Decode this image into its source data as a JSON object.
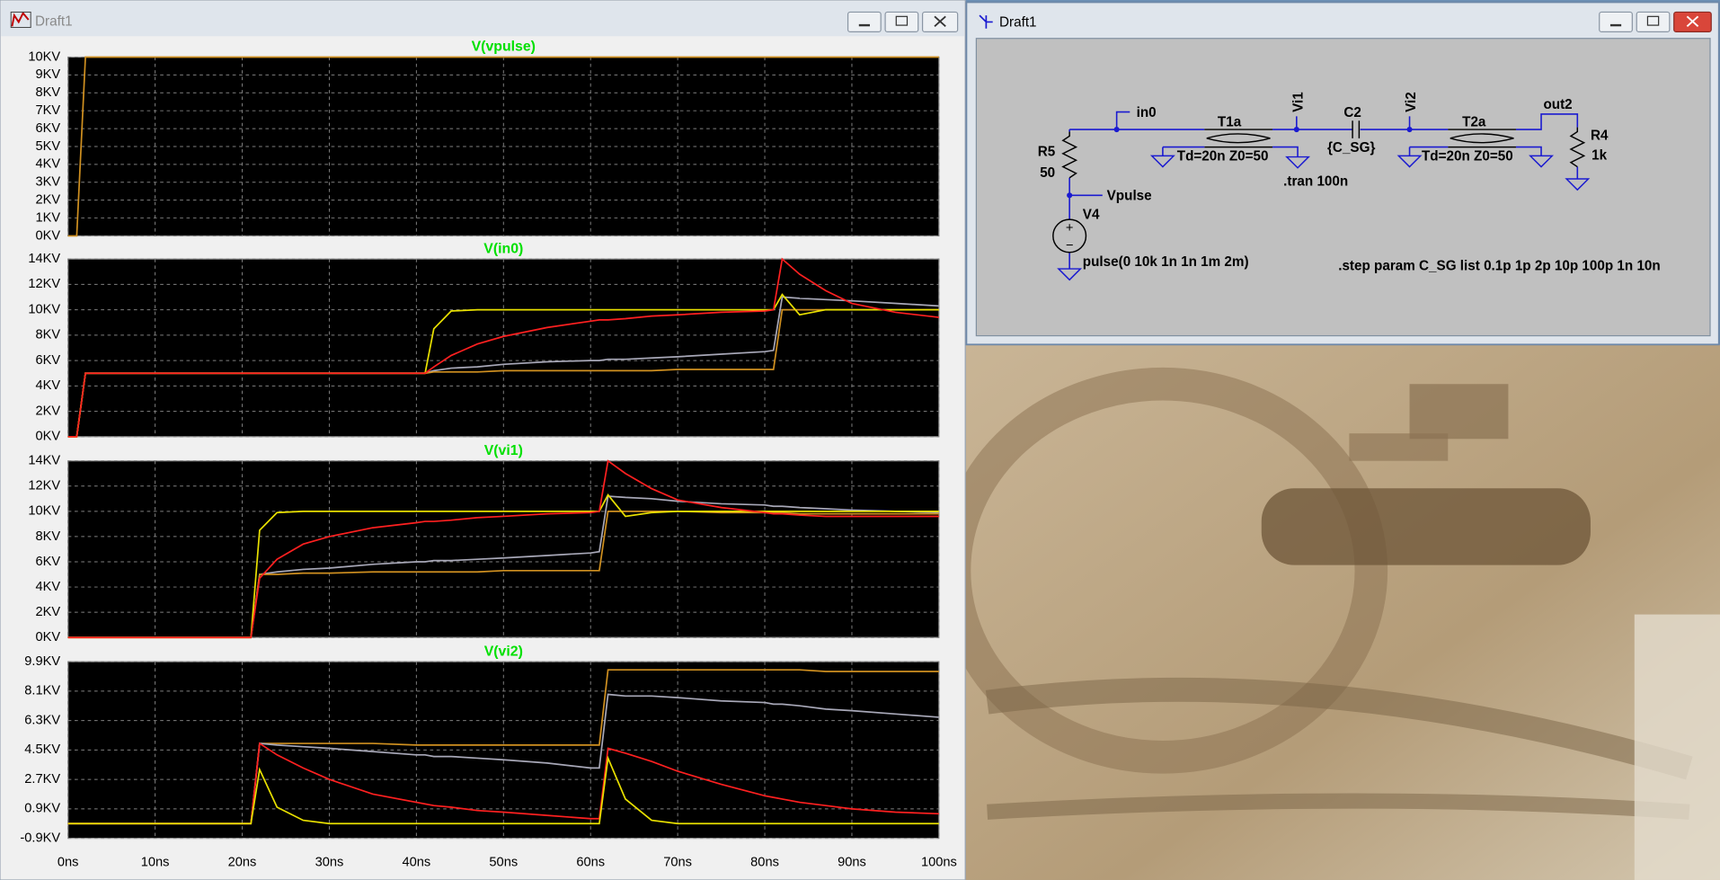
{
  "waveform_window": {
    "title": "Draft1"
  },
  "chart_data": [
    {
      "type": "line",
      "title": "V(vpulse)",
      "x": [
        0,
        1,
        2,
        100
      ],
      "xlim": [
        0,
        100
      ],
      "ylim": [
        0,
        10
      ],
      "grid": true,
      "yticks": [
        {
          "value": 0,
          "label": "0KV"
        },
        {
          "value": 1,
          "label": "1KV"
        },
        {
          "value": 2,
          "label": "2KV"
        },
        {
          "value": 3,
          "label": "3KV"
        },
        {
          "value": 4,
          "label": "4KV"
        },
        {
          "value": 5,
          "label": "5KV"
        },
        {
          "value": 6,
          "label": "6KV"
        },
        {
          "value": 7,
          "label": "7KV"
        },
        {
          "value": 8,
          "label": "8KV"
        },
        {
          "value": 9,
          "label": "9KV"
        },
        {
          "value": 10,
          "label": "10KV"
        }
      ],
      "series": [
        {
          "color": "#d09020",
          "values": [
            0,
            0,
            10,
            10
          ]
        }
      ]
    },
    {
      "type": "line",
      "title": "V(in0)",
      "x": [
        0,
        1,
        2,
        21,
        22,
        24,
        27,
        30,
        35,
        40,
        41,
        42,
        44,
        47,
        50,
        55,
        60,
        61,
        62,
        64,
        67,
        70,
        75,
        80,
        81,
        82,
        84,
        87,
        90,
        95,
        100
      ],
      "xlim": [
        0,
        100
      ],
      "ylim": [
        0,
        14
      ],
      "grid": true,
      "yticks": [
        {
          "value": 0,
          "label": "0KV"
        },
        {
          "value": 2,
          "label": "2KV"
        },
        {
          "value": 4,
          "label": "4KV"
        },
        {
          "value": 6,
          "label": "6KV"
        },
        {
          "value": 8,
          "label": "8KV"
        },
        {
          "value": 10,
          "label": "10KV"
        },
        {
          "value": 12,
          "label": "12KV"
        },
        {
          "value": 14,
          "label": "14KV"
        }
      ],
      "series": [
        {
          "color": "#a8a8b8",
          "values": [
            0,
            0,
            5,
            5,
            5,
            5,
            5,
            5,
            5,
            5,
            5,
            5.2,
            5.4,
            5.5,
            5.7,
            5.9,
            6.0,
            6.0,
            6.1,
            6.1,
            6.2,
            6.3,
            6.5,
            6.7,
            6.8,
            11.0,
            10.9,
            10.8,
            10.7,
            10.5,
            10.3
          ]
        },
        {
          "color": "#d09020",
          "values": [
            0,
            0,
            5,
            5,
            5,
            5,
            5,
            5,
            5,
            5,
            5,
            5.1,
            5.1,
            5.1,
            5.2,
            5.2,
            5.2,
            5.2,
            5.2,
            5.2,
            5.2,
            5.3,
            5.3,
            5.3,
            5.3,
            10,
            10,
            10,
            10,
            10,
            10
          ]
        },
        {
          "color": "#e8e000",
          "values": [
            0,
            0,
            5,
            5,
            5,
            5,
            5,
            5,
            5,
            5,
            5,
            8.5,
            9.9,
            10,
            10,
            10,
            10,
            10,
            10,
            10,
            10,
            10,
            10,
            10,
            10,
            11.2,
            9.6,
            10,
            10,
            10,
            10
          ]
        },
        {
          "color": "#ff2020",
          "values": [
            0,
            0,
            5,
            5,
            5,
            5,
            5,
            5,
            5,
            5,
            5,
            5.5,
            6.4,
            7.3,
            7.9,
            8.6,
            9.1,
            9.2,
            9.2,
            9.3,
            9.5,
            9.6,
            9.8,
            9.9,
            10,
            14,
            12.8,
            11.5,
            10.5,
            9.8,
            9.4
          ]
        }
      ]
    },
    {
      "type": "line",
      "title": "V(vi1)",
      "x": [
        0,
        1,
        2,
        21,
        22,
        24,
        27,
        30,
        35,
        40,
        41,
        42,
        44,
        47,
        50,
        55,
        60,
        61,
        62,
        64,
        67,
        70,
        75,
        80,
        81,
        82,
        84,
        87,
        90,
        95,
        100
      ],
      "xlim": [
        0,
        100
      ],
      "ylim": [
        0,
        14
      ],
      "grid": true,
      "yticks": [
        {
          "value": 0,
          "label": "0KV"
        },
        {
          "value": 2,
          "label": "2KV"
        },
        {
          "value": 4,
          "label": "4KV"
        },
        {
          "value": 6,
          "label": "6KV"
        },
        {
          "value": 8,
          "label": "8KV"
        },
        {
          "value": 10,
          "label": "10KV"
        },
        {
          "value": 12,
          "label": "12KV"
        },
        {
          "value": 14,
          "label": "14KV"
        }
      ],
      "series": [
        {
          "color": "#a8a8b8",
          "values": [
            0,
            0,
            0,
            0,
            5,
            5.2,
            5.4,
            5.5,
            5.8,
            6.0,
            6.0,
            6.1,
            6.1,
            6.2,
            6.3,
            6.5,
            6.7,
            6.8,
            11.2,
            11.1,
            11.0,
            10.8,
            10.6,
            10.5,
            10.4,
            10.4,
            10.3,
            10.2,
            10.1,
            10.0,
            9.9
          ]
        },
        {
          "color": "#d09020",
          "values": [
            0,
            0,
            0,
            0,
            5,
            5,
            5.1,
            5.1,
            5.2,
            5.2,
            5.2,
            5.2,
            5.2,
            5.2,
            5.3,
            5.3,
            5.3,
            5.3,
            10,
            10,
            10,
            10,
            9.9,
            9.9,
            9.9,
            9.9,
            9.8,
            9.8,
            9.8,
            9.8,
            9.8
          ]
        },
        {
          "color": "#e8e000",
          "values": [
            0,
            0,
            0,
            0,
            8.5,
            9.9,
            10,
            10,
            10,
            10,
            10,
            10,
            10,
            10,
            10,
            10,
            10,
            10,
            11.3,
            9.6,
            9.9,
            10,
            10,
            10,
            10,
            10,
            10,
            10,
            10,
            10,
            10
          ]
        },
        {
          "color": "#ff2020",
          "values": [
            0,
            0,
            0,
            0,
            4.7,
            6.2,
            7.4,
            8.0,
            8.7,
            9.1,
            9.2,
            9.2,
            9.3,
            9.5,
            9.6,
            9.8,
            9.9,
            10,
            14,
            13,
            11.8,
            10.9,
            10.3,
            9.9,
            9.8,
            9.8,
            9.7,
            9.6,
            9.6,
            9.6,
            9.6
          ]
        }
      ]
    },
    {
      "type": "line",
      "title": "V(vi2)",
      "x": [
        0,
        1,
        2,
        21,
        22,
        24,
        27,
        30,
        35,
        40,
        41,
        42,
        44,
        47,
        50,
        55,
        60,
        61,
        62,
        64,
        67,
        70,
        75,
        80,
        81,
        82,
        84,
        87,
        90,
        95,
        100
      ],
      "xlim": [
        0,
        100
      ],
      "ylim": [
        -0.9,
        9.9
      ],
      "grid": true,
      "yticks": [
        {
          "value": -0.9,
          "label": "-0.9KV"
        },
        {
          "value": 0.9,
          "label": "0.9KV"
        },
        {
          "value": 2.7,
          "label": "2.7KV"
        },
        {
          "value": 4.5,
          "label": "4.5KV"
        },
        {
          "value": 6.3,
          "label": "6.3KV"
        },
        {
          "value": 8.1,
          "label": "8.1KV"
        },
        {
          "value": 9.9,
          "label": "9.9KV"
        }
      ],
      "xticks": [
        {
          "value": 0,
          "label": "0ns"
        },
        {
          "value": 10,
          "label": "10ns"
        },
        {
          "value": 20,
          "label": "20ns"
        },
        {
          "value": 30,
          "label": "30ns"
        },
        {
          "value": 40,
          "label": "40ns"
        },
        {
          "value": 50,
          "label": "50ns"
        },
        {
          "value": 60,
          "label": "60ns"
        },
        {
          "value": 70,
          "label": "70ns"
        },
        {
          "value": 80,
          "label": "80ns"
        },
        {
          "value": 90,
          "label": "90ns"
        },
        {
          "value": 100,
          "label": "100ns"
        }
      ],
      "series": [
        {
          "color": "#d09020",
          "values": [
            0,
            0,
            0,
            0,
            4.9,
            4.9,
            4.9,
            4.9,
            4.9,
            4.8,
            4.8,
            4.8,
            4.8,
            4.8,
            4.8,
            4.8,
            4.8,
            4.8,
            9.4,
            9.4,
            9.4,
            9.4,
            9.4,
            9.4,
            9.4,
            9.4,
            9.4,
            9.3,
            9.3,
            9.3,
            9.3
          ]
        },
        {
          "color": "#a8a8b8",
          "values": [
            0,
            0,
            0,
            0,
            4.9,
            4.8,
            4.7,
            4.6,
            4.4,
            4.2,
            4.2,
            4.1,
            4.1,
            4.0,
            3.9,
            3.7,
            3.4,
            3.4,
            7.9,
            7.8,
            7.8,
            7.7,
            7.5,
            7.4,
            7.3,
            7.3,
            7.2,
            7.0,
            6.9,
            6.7,
            6.5
          ]
        },
        {
          "color": "#ff2020",
          "values": [
            0,
            0,
            0,
            0,
            4.9,
            4.2,
            3.4,
            2.7,
            1.8,
            1.3,
            1.2,
            1.1,
            1.0,
            0.8,
            0.7,
            0.5,
            0.3,
            0.3,
            4.6,
            4.3,
            3.8,
            3.2,
            2.4,
            1.7,
            1.6,
            1.5,
            1.3,
            1.1,
            0.9,
            0.7,
            0.6
          ]
        },
        {
          "color": "#e8e000",
          "values": [
            0,
            0,
            0,
            0,
            3.3,
            1.0,
            0.2,
            0,
            0,
            0,
            0,
            0,
            0,
            0,
            0,
            0,
            0,
            0,
            4.0,
            1.5,
            0.2,
            0,
            0,
            0,
            0,
            0,
            0,
            0,
            0,
            0,
            0
          ]
        }
      ]
    }
  ],
  "schematic_window": {
    "title": "Draft1",
    "labels": {
      "in0": "in0",
      "t1a": "T1a",
      "vi1": "Vi1",
      "c2": "C2",
      "vi2": "Vi2",
      "t2a": "T2a",
      "out2": "out2",
      "r5": "R5",
      "r5_value": "50",
      "r4": "R4",
      "r4_value": "1k",
      "vpulse": "Vpulse",
      "v4": "V4",
      "c2_value": "{C_SG}",
      "t1a_params": "Td=20n Z0=50",
      "t2a_params": "Td=20n Z0=50",
      "tran": ".tran 100n",
      "v4_value": "pulse(0 10k 1n 1n 1m 2m)",
      "step": ".step param C_SG list 0.1p 1p 2p 10p 100p 1n 10n"
    }
  }
}
